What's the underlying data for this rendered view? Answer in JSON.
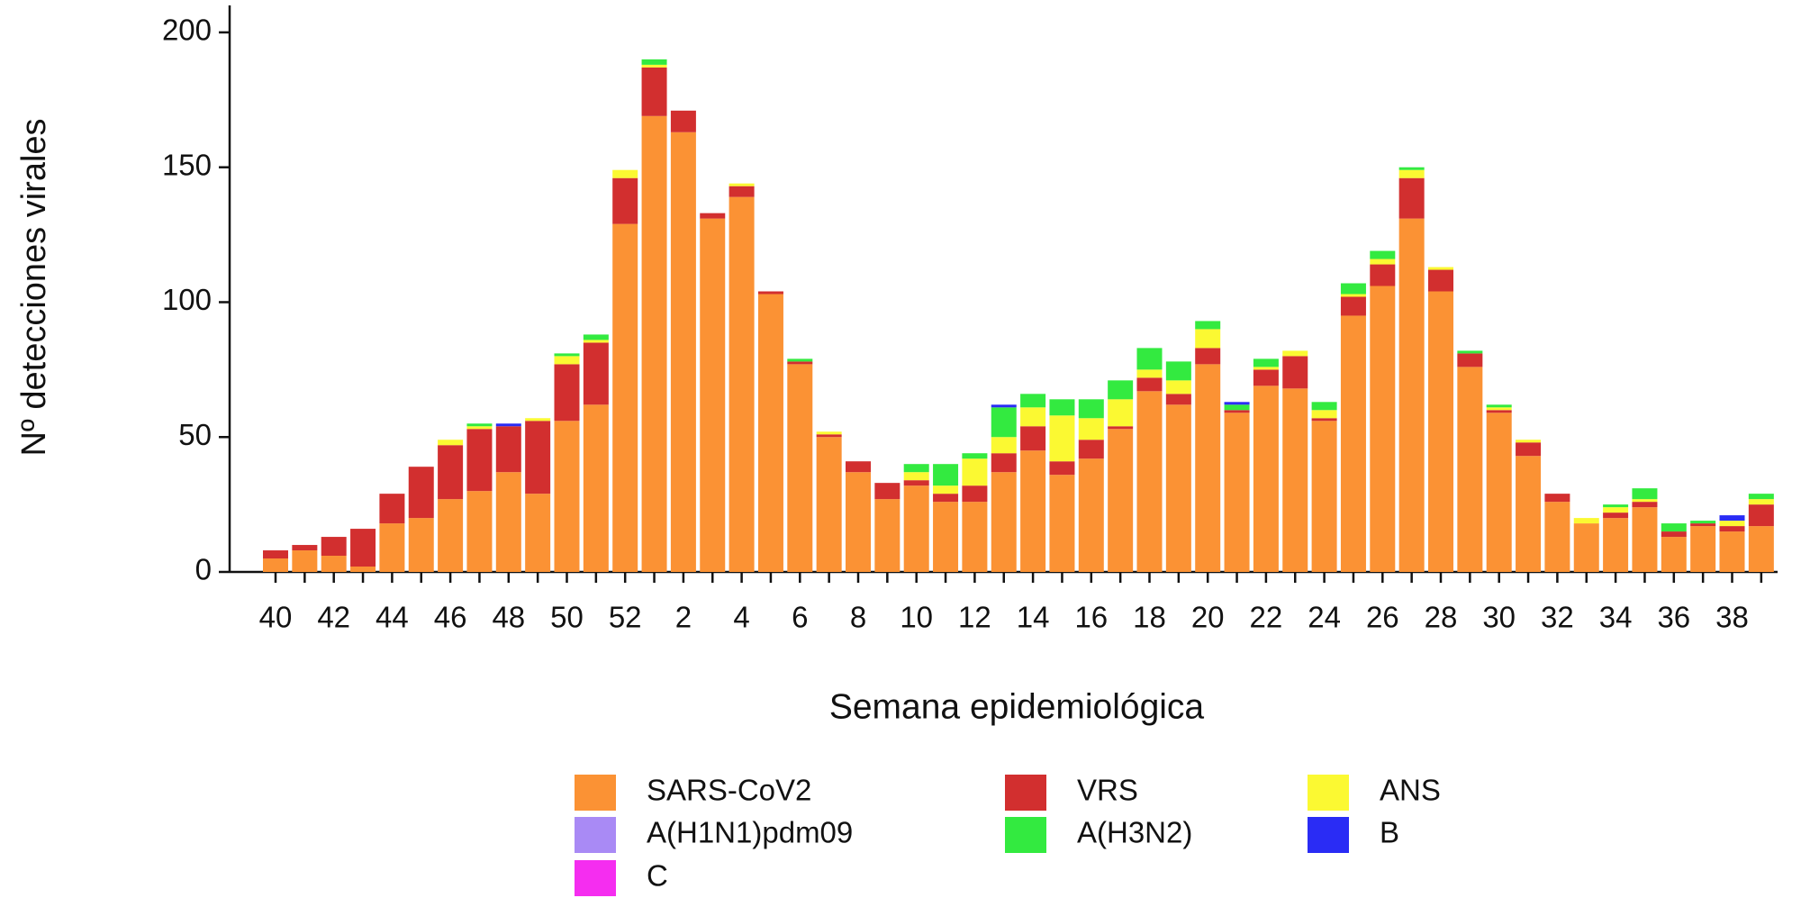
{
  "chart_data": {
    "type": "stacked_bar",
    "xlabel": "Semana epidemiológica",
    "ylabel": "Nº detecciones virales",
    "categories": [
      "40",
      null,
      "42",
      null,
      "44",
      null,
      "46",
      null,
      "48",
      null,
      "50",
      null,
      "52",
      null,
      "2",
      null,
      "4",
      null,
      "6",
      null,
      "8",
      null,
      "10",
      null,
      "12",
      null,
      "14",
      null,
      "16",
      null,
      "18",
      null,
      "20",
      null,
      "22",
      null,
      "24",
      null,
      "26",
      null,
      "28",
      null,
      "30",
      null,
      "32",
      null,
      "34",
      null,
      "36",
      null,
      "38",
      null
    ],
    "ylim": [
      0,
      210
    ],
    "yticks": [
      0,
      50,
      100,
      150,
      200
    ],
    "series": [
      {
        "name": "SARS-CoV2",
        "color": "#fb9234",
        "values": [
          5,
          8,
          6,
          2,
          18,
          20,
          27,
          30,
          37,
          29,
          56,
          62,
          129,
          169,
          163,
          131,
          139,
          103,
          77,
          50,
          37,
          27,
          32,
          26,
          26,
          37,
          45,
          36,
          42,
          53,
          67,
          62,
          77,
          59,
          69,
          68,
          56,
          95,
          106,
          131,
          104,
          76,
          59,
          43,
          26,
          18,
          20,
          24,
          13,
          17,
          15,
          17
        ]
      },
      {
        "name": "VRS",
        "color": "#d22f2f",
        "values": [
          3,
          2,
          7,
          14,
          11,
          19,
          20,
          23,
          17,
          27,
          21,
          23,
          17,
          18,
          8,
          2,
          4,
          1,
          1,
          1,
          4,
          6,
          2,
          3,
          6,
          7,
          9,
          5,
          7,
          1,
          5,
          4,
          6,
          1,
          6,
          12,
          1,
          7,
          8,
          15,
          8,
          5,
          1,
          5,
          3,
          0,
          2,
          2,
          2,
          1,
          2,
          8
        ]
      },
      {
        "name": "ANS",
        "color": "#fbf932",
        "values": [
          0,
          0,
          0,
          0,
          0,
          0,
          2,
          1,
          0,
          1,
          3,
          1,
          3,
          1,
          0,
          0,
          1,
          0,
          0,
          1,
          0,
          0,
          3,
          3,
          10,
          6,
          7,
          17,
          8,
          10,
          3,
          5,
          7,
          0,
          1,
          2,
          3,
          1,
          2,
          3,
          1,
          0,
          1,
          1,
          0,
          2,
          2,
          1,
          0,
          0,
          2,
          2
        ]
      },
      {
        "name": "A(H1N1)pdm09",
        "color": "#a98af5",
        "values": [
          0,
          0,
          0,
          0,
          0,
          0,
          0,
          0,
          0,
          0,
          0,
          0,
          0,
          0,
          0,
          0,
          0,
          0,
          0,
          0,
          0,
          0,
          0,
          0,
          0,
          0,
          0,
          0,
          0,
          0,
          0,
          0,
          0,
          0,
          0,
          0,
          0,
          0,
          0,
          0,
          0,
          0,
          0,
          0,
          0,
          0,
          0,
          0,
          0,
          0,
          0,
          0
        ]
      },
      {
        "name": "A(H3N2)",
        "color": "#33ea40",
        "values": [
          0,
          0,
          0,
          0,
          0,
          0,
          0,
          1,
          0,
          0,
          1,
          2,
          0,
          2,
          0,
          0,
          0,
          0,
          1,
          0,
          0,
          0,
          3,
          8,
          2,
          11,
          5,
          6,
          7,
          7,
          8,
          7,
          3,
          2,
          3,
          0,
          3,
          4,
          3,
          1,
          0,
          1,
          1,
          0,
          0,
          0,
          1,
          4,
          3,
          1,
          0,
          2
        ]
      },
      {
        "name": "B",
        "color": "#2a2cf5",
        "values": [
          0,
          0,
          0,
          0,
          0,
          0,
          0,
          0,
          1,
          0,
          0,
          0,
          0,
          0,
          0,
          0,
          0,
          0,
          0,
          0,
          0,
          0,
          0,
          0,
          0,
          1,
          0,
          0,
          0,
          0,
          0,
          0,
          0,
          1,
          0,
          0,
          0,
          0,
          0,
          0,
          0,
          0,
          0,
          0,
          0,
          0,
          0,
          0,
          0,
          0,
          2,
          0
        ]
      },
      {
        "name": "C",
        "color": "#f52df0",
        "values": [
          0,
          0,
          0,
          0,
          0,
          0,
          0,
          0,
          0,
          0,
          0,
          0,
          0,
          0,
          0,
          0,
          0,
          0,
          0,
          0,
          0,
          0,
          0,
          0,
          0,
          0,
          0,
          0,
          0,
          0,
          0,
          0,
          0,
          0,
          0,
          0,
          0,
          0,
          0,
          0,
          0,
          0,
          0,
          0,
          0,
          0,
          0,
          0,
          0,
          0,
          0,
          0
        ]
      }
    ]
  }
}
